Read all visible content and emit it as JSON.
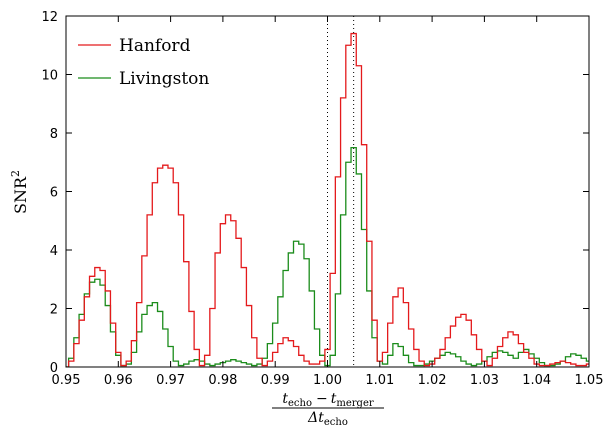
{
  "chart_data": {
    "type": "line",
    "xlabel": {
      "num_a": "t",
      "num_a_sub": "echo",
      "minus": "−",
      "num_b": "t",
      "num_b_sub": "merger",
      "den": "Δt",
      "den_sub": "echo"
    },
    "ylabel": {
      "base": "SNR",
      "sup": "2"
    },
    "xlim": [
      0.95,
      1.05
    ],
    "ylim": [
      0,
      12
    ],
    "xticks": [
      0.95,
      0.96,
      0.97,
      0.98,
      0.99,
      1.0,
      1.01,
      1.02,
      1.03,
      1.04,
      1.05
    ],
    "xtick_labels": [
      "0.95",
      "0.96",
      "0.97",
      "0.98",
      "0.99",
      "1.00",
      "1.01",
      "1.02",
      "1.03",
      "1.04",
      "1.05"
    ],
    "yticks": [
      0,
      2,
      4,
      6,
      8,
      10,
      12
    ],
    "ytick_labels": [
      "0",
      "2",
      "4",
      "6",
      "8",
      "10",
      "12"
    ],
    "vlines": [
      1.0,
      1.005
    ],
    "legend_position": "top-left",
    "series": [
      {
        "name": "Hanford",
        "color": "#e41a1c",
        "x": [
          0.95,
          0.951,
          0.952,
          0.953,
          0.954,
          0.955,
          0.956,
          0.957,
          0.958,
          0.959,
          0.96,
          0.961,
          0.962,
          0.963,
          0.964,
          0.965,
          0.966,
          0.967,
          0.968,
          0.969,
          0.97,
          0.971,
          0.972,
          0.973,
          0.974,
          0.975,
          0.976,
          0.977,
          0.978,
          0.979,
          0.98,
          0.981,
          0.982,
          0.983,
          0.984,
          0.985,
          0.986,
          0.987,
          0.988,
          0.989,
          0.99,
          0.991,
          0.992,
          0.993,
          0.994,
          0.995,
          0.996,
          0.997,
          0.998,
          0.999,
          1.0,
          1.001,
          1.002,
          1.003,
          1.004,
          1.005,
          1.006,
          1.007,
          1.008,
          1.009,
          1.01,
          1.011,
          1.012,
          1.013,
          1.014,
          1.015,
          1.016,
          1.017,
          1.018,
          1.019,
          1.02,
          1.021,
          1.022,
          1.023,
          1.024,
          1.025,
          1.026,
          1.027,
          1.028,
          1.029,
          1.03,
          1.031,
          1.032,
          1.033,
          1.034,
          1.035,
          1.036,
          1.037,
          1.038,
          1.039,
          1.04,
          1.041,
          1.042,
          1.043,
          1.044,
          1.045,
          1.046,
          1.047,
          1.048,
          1.049,
          1.05
        ],
        "y": [
          0.0,
          0.2,
          0.8,
          1.6,
          2.4,
          3.1,
          3.4,
          3.3,
          2.6,
          1.5,
          0.5,
          0.05,
          0.2,
          0.9,
          2.2,
          3.8,
          5.2,
          6.3,
          6.8,
          6.9,
          6.8,
          6.3,
          5.2,
          3.6,
          1.9,
          0.6,
          0.05,
          0.4,
          2.0,
          3.9,
          4.9,
          5.2,
          5.0,
          4.4,
          3.4,
          2.1,
          1.0,
          0.3,
          0.05,
          0.2,
          0.5,
          0.8,
          1.0,
          0.9,
          0.7,
          0.4,
          0.2,
          0.1,
          0.1,
          0.2,
          0.6,
          3.2,
          6.5,
          9.2,
          11.0,
          11.4,
          10.3,
          7.6,
          4.3,
          1.6,
          0.2,
          0.5,
          1.5,
          2.4,
          2.7,
          2.2,
          1.3,
          0.6,
          0.2,
          0.05,
          0.1,
          0.3,
          0.6,
          1.0,
          1.4,
          1.7,
          1.8,
          1.6,
          1.1,
          0.6,
          0.2,
          0.05,
          0.3,
          0.7,
          1.0,
          1.2,
          1.1,
          0.8,
          0.5,
          0.3,
          0.1,
          0.05,
          0.05,
          0.1,
          0.15,
          0.2,
          0.15,
          0.1,
          0.05,
          0.05,
          0.1
        ]
      },
      {
        "name": "Livingston",
        "color": "#1b8c1b",
        "x": [
          0.95,
          0.951,
          0.952,
          0.953,
          0.954,
          0.955,
          0.956,
          0.957,
          0.958,
          0.959,
          0.96,
          0.961,
          0.962,
          0.963,
          0.964,
          0.965,
          0.966,
          0.967,
          0.968,
          0.969,
          0.97,
          0.971,
          0.972,
          0.973,
          0.974,
          0.975,
          0.976,
          0.977,
          0.978,
          0.979,
          0.98,
          0.981,
          0.982,
          0.983,
          0.984,
          0.985,
          0.986,
          0.987,
          0.988,
          0.989,
          0.99,
          0.991,
          0.992,
          0.993,
          0.994,
          0.995,
          0.996,
          0.997,
          0.998,
          0.999,
          1.0,
          1.001,
          1.002,
          1.003,
          1.004,
          1.005,
          1.006,
          1.007,
          1.008,
          1.009,
          1.01,
          1.011,
          1.012,
          1.013,
          1.014,
          1.015,
          1.016,
          1.017,
          1.018,
          1.019,
          1.02,
          1.021,
          1.022,
          1.023,
          1.024,
          1.025,
          1.026,
          1.027,
          1.028,
          1.029,
          1.03,
          1.031,
          1.032,
          1.033,
          1.034,
          1.035,
          1.036,
          1.037,
          1.038,
          1.039,
          1.04,
          1.041,
          1.042,
          1.043,
          1.044,
          1.045,
          1.046,
          1.047,
          1.048,
          1.049,
          1.05
        ],
        "y": [
          0.0,
          0.3,
          1.0,
          1.8,
          2.5,
          2.9,
          3.0,
          2.8,
          2.1,
          1.2,
          0.4,
          0.05,
          0.1,
          0.5,
          1.2,
          1.8,
          2.1,
          2.2,
          1.9,
          1.3,
          0.7,
          0.2,
          0.05,
          0.1,
          0.2,
          0.25,
          0.2,
          0.1,
          0.05,
          0.1,
          0.15,
          0.2,
          0.25,
          0.2,
          0.15,
          0.1,
          0.05,
          0.1,
          0.3,
          0.8,
          1.5,
          2.4,
          3.3,
          3.9,
          4.3,
          4.2,
          3.7,
          2.6,
          1.3,
          0.4,
          0.05,
          0.4,
          2.5,
          5.2,
          7.0,
          7.5,
          6.6,
          4.7,
          2.6,
          1.0,
          0.2,
          0.1,
          0.4,
          0.8,
          0.7,
          0.4,
          0.15,
          0.05,
          0.05,
          0.1,
          0.2,
          0.3,
          0.4,
          0.5,
          0.45,
          0.35,
          0.2,
          0.1,
          0.05,
          0.1,
          0.2,
          0.35,
          0.5,
          0.55,
          0.5,
          0.4,
          0.3,
          0.5,
          0.6,
          0.45,
          0.3,
          0.15,
          0.05,
          0.05,
          0.1,
          0.2,
          0.35,
          0.45,
          0.4,
          0.3,
          0.2
        ]
      }
    ]
  }
}
